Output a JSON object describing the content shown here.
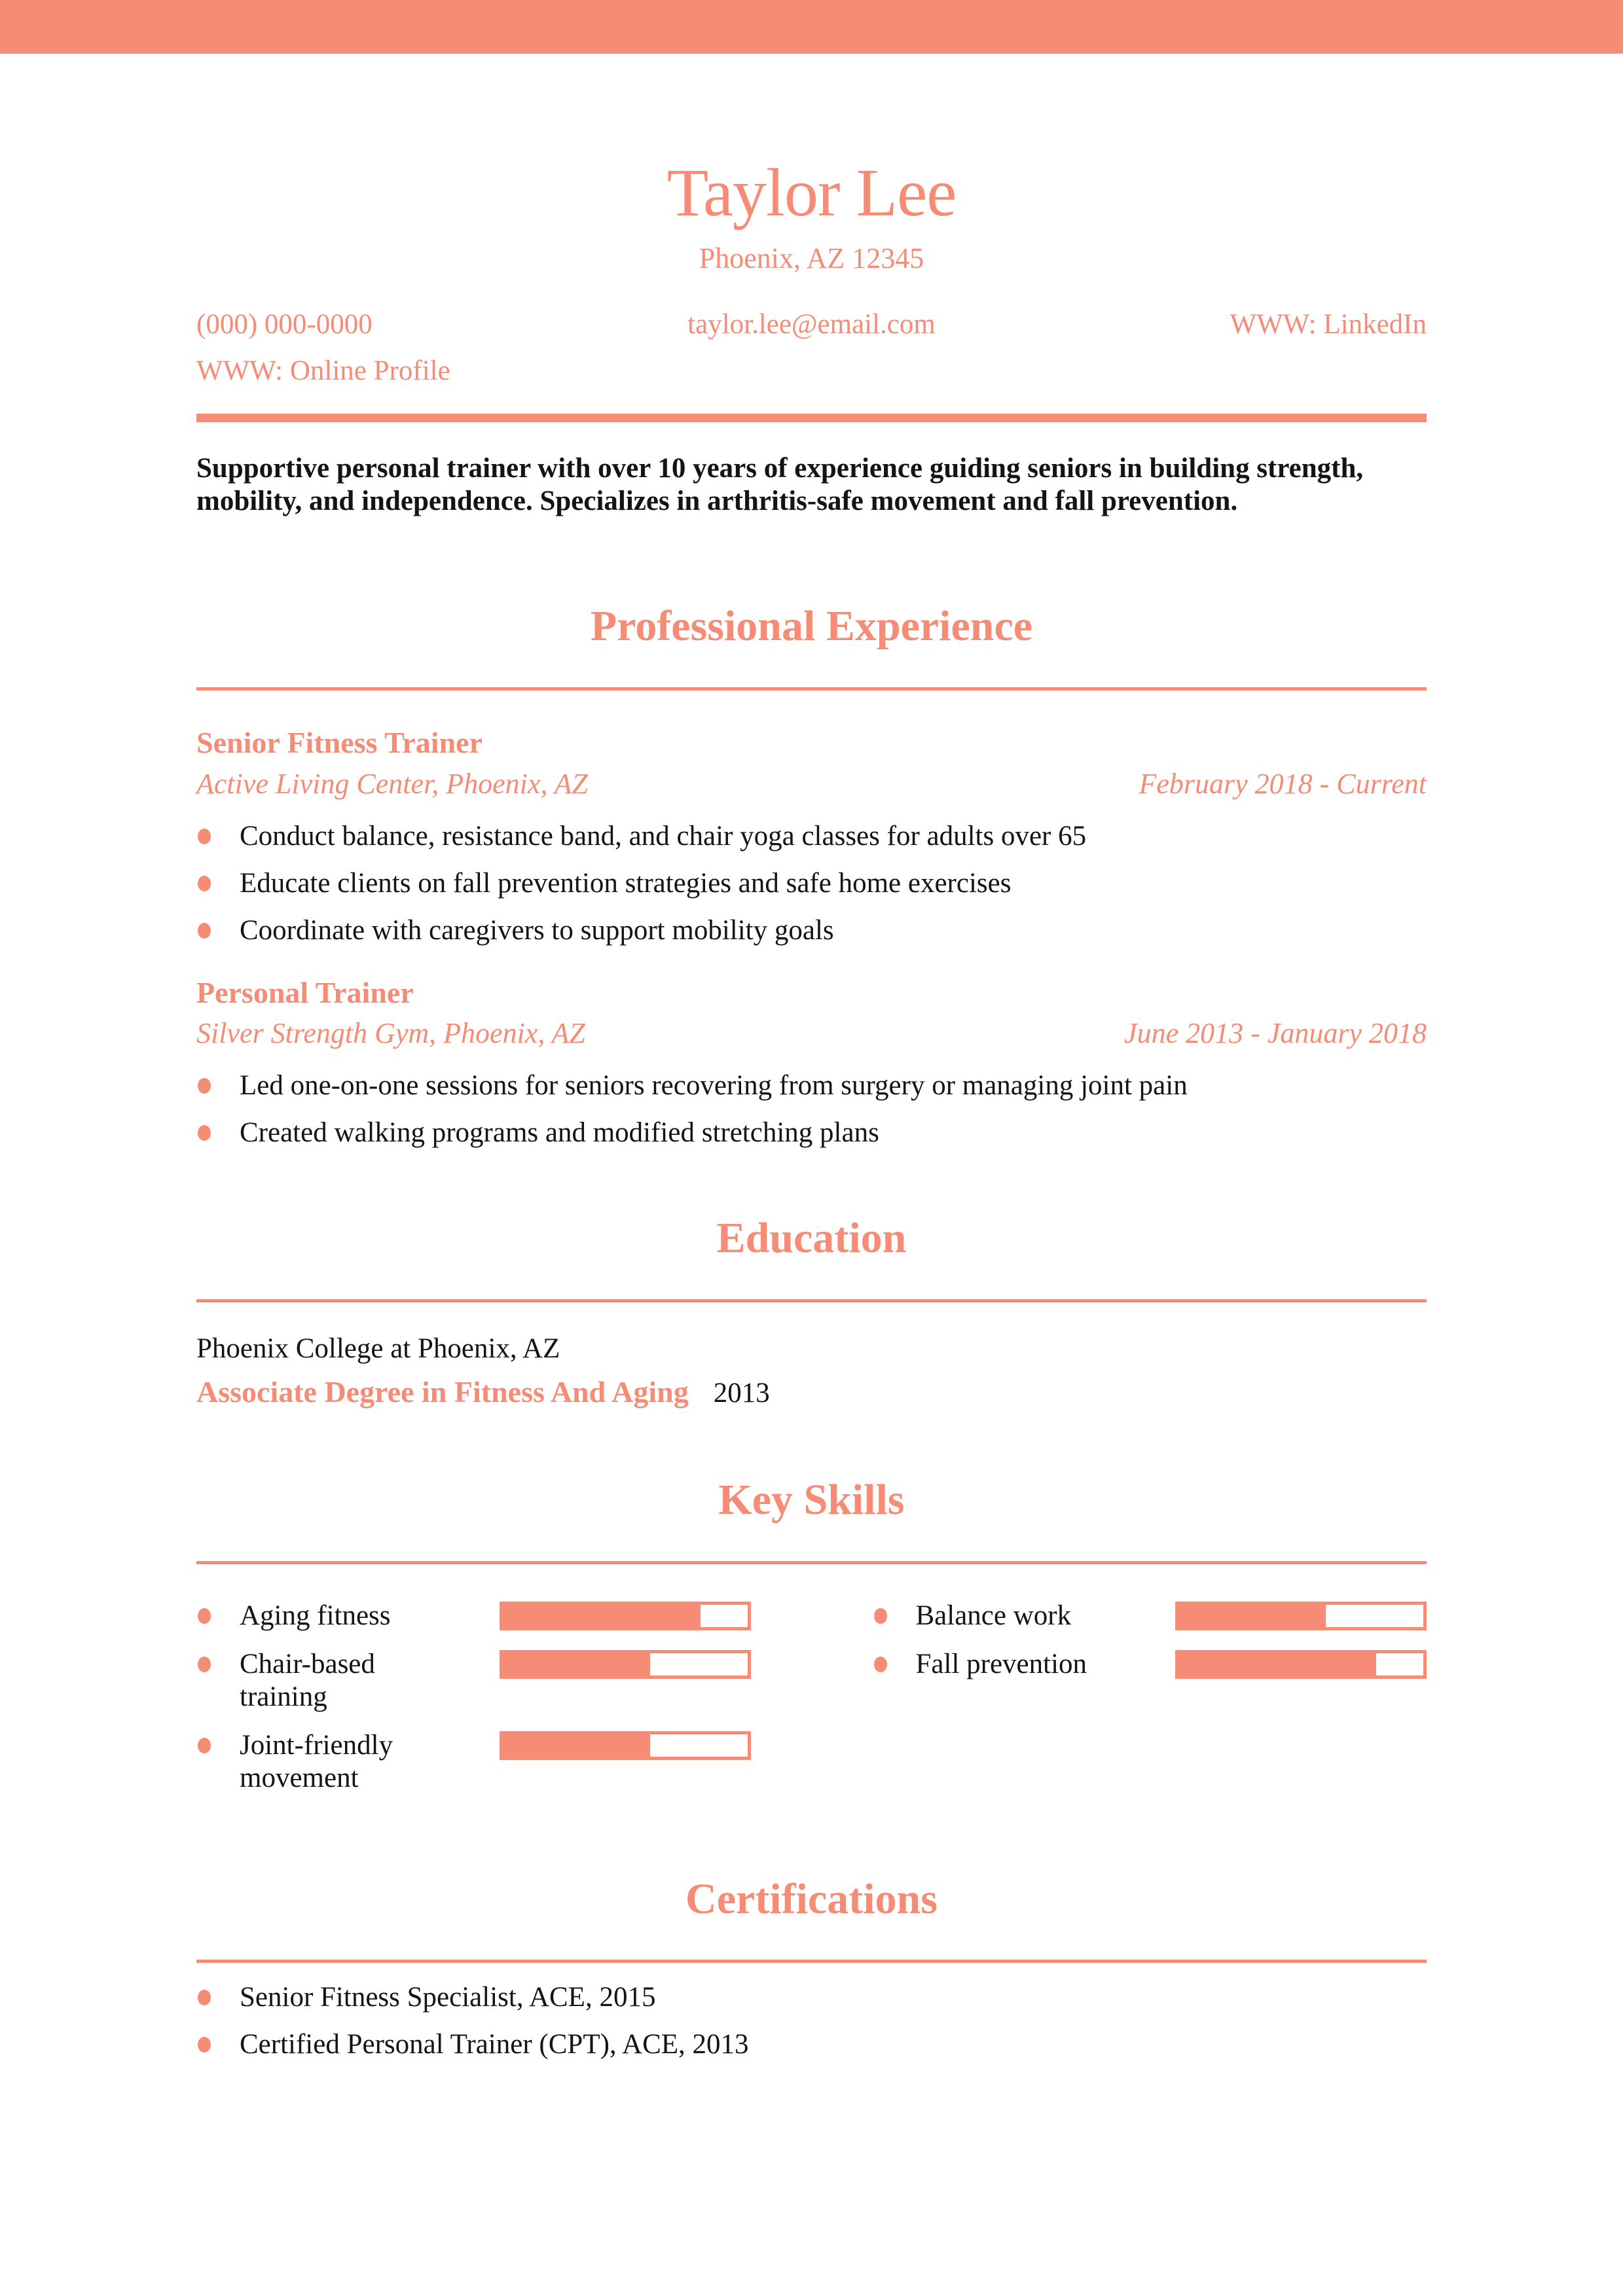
{
  "accent_color": "#f68b76",
  "header": {
    "name": "Taylor Lee",
    "location": "Phoenix, AZ 12345",
    "phone": "(000) 000-0000",
    "email": "taylor.lee@email.com",
    "linkedin": "WWW: LinkedIn",
    "online_profile": "WWW: Online Profile"
  },
  "summary": "Supportive personal trainer with over 10 years of experience guiding seniors in building strength, mobility, and independence. Specializes in arthritis-safe movement and fall prevention.",
  "sections": {
    "experience": {
      "title": "Professional Experience",
      "jobs": [
        {
          "title": "Senior Fitness Trainer",
          "company": "Active Living Center, Phoenix, AZ",
          "dates": "February 2018 - Current",
          "bullets": [
            "Conduct balance, resistance band, and chair yoga classes for adults over 65",
            "Educate clients on fall prevention strategies and safe home exercises",
            "Coordinate with caregivers to support mobility goals"
          ]
        },
        {
          "title": "Personal Trainer",
          "company": "Silver Strength Gym, Phoenix, AZ",
          "dates": "June 2013 - January 2018",
          "bullets": [
            "Led one-on-one sessions for seniors recovering from surgery or managing joint pain",
            "Created walking programs and modified stretching plans"
          ]
        }
      ]
    },
    "education": {
      "title": "Education",
      "school": "Phoenix College at Phoenix, AZ",
      "degree": "Associate Degree in Fitness And Aging",
      "year": "2013"
    },
    "skills": {
      "title": "Key Skills",
      "items": [
        {
          "label": "Aging fitness",
          "level": 80
        },
        {
          "label": "Chair-based training",
          "level": 60
        },
        {
          "label": "Joint-friendly movement",
          "level": 60
        },
        {
          "label": "Balance work",
          "level": 60
        },
        {
          "label": "Fall prevention",
          "level": 80
        }
      ]
    },
    "certifications": {
      "title": "Certifications",
      "items": [
        "Senior Fitness Specialist, ACE, 2015",
        "Certified Personal Trainer (CPT), ACE, 2013"
      ]
    }
  }
}
